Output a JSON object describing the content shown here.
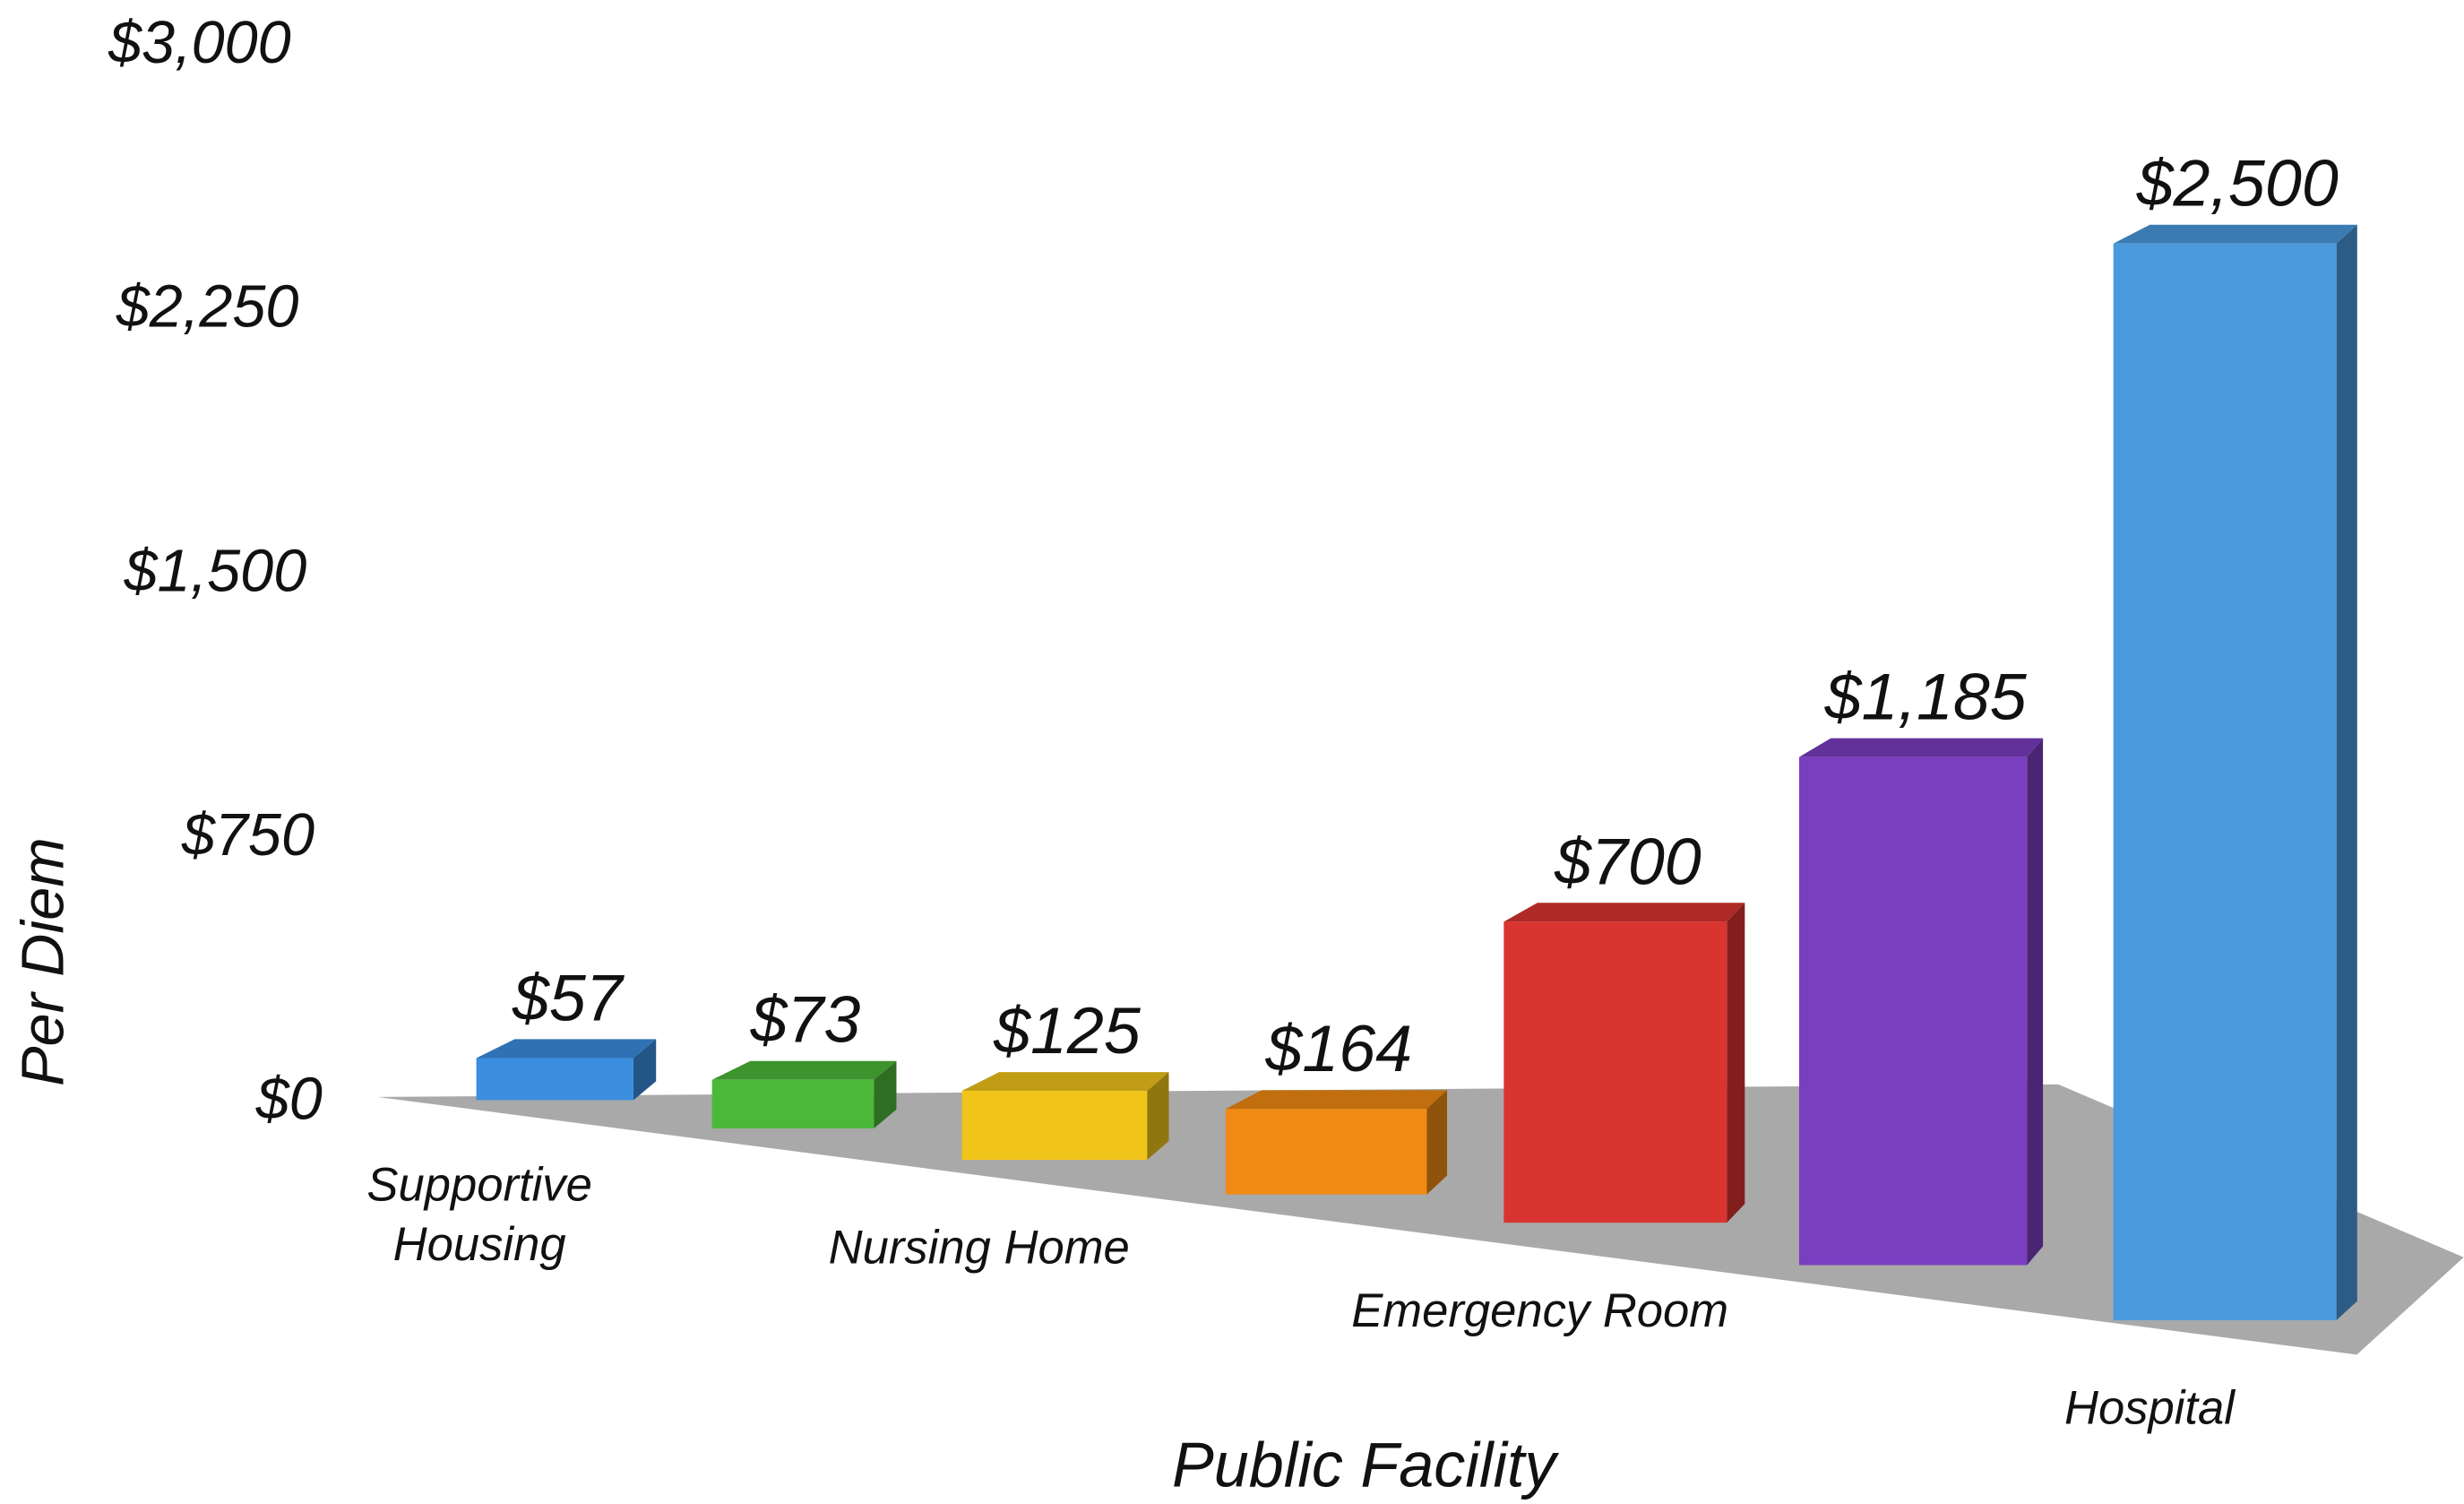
{
  "chart_data": {
    "type": "bar3d",
    "categories": [
      "Supportive Housing",
      null,
      "Nursing Home",
      null,
      "Emergency Room",
      null,
      "Hospital"
    ],
    "values": [
      57,
      73,
      125,
      164,
      700,
      1185,
      2500
    ],
    "value_labels": [
      "$57",
      "$73",
      "$125",
      "$164",
      "$700",
      "$1,185",
      "$2,500"
    ],
    "colors": [
      "#3b8ee0",
      "#4cb83a",
      "#f0c419",
      "#f08a12",
      "#d9342f",
      "#7a3ec0",
      "#4a9ade"
    ],
    "ylim": [
      0,
      3000
    ],
    "yticks": [
      {
        "value": 0,
        "label": "$0"
      },
      {
        "value": 750,
        "label": "$750"
      },
      {
        "value": 1500,
        "label": "$1,500"
      },
      {
        "value": 2250,
        "label": "$2,250"
      },
      {
        "value": 3000,
        "label": "$3,000"
      }
    ],
    "ylabel": "Per Diem",
    "xlabel": "Public Facility"
  }
}
